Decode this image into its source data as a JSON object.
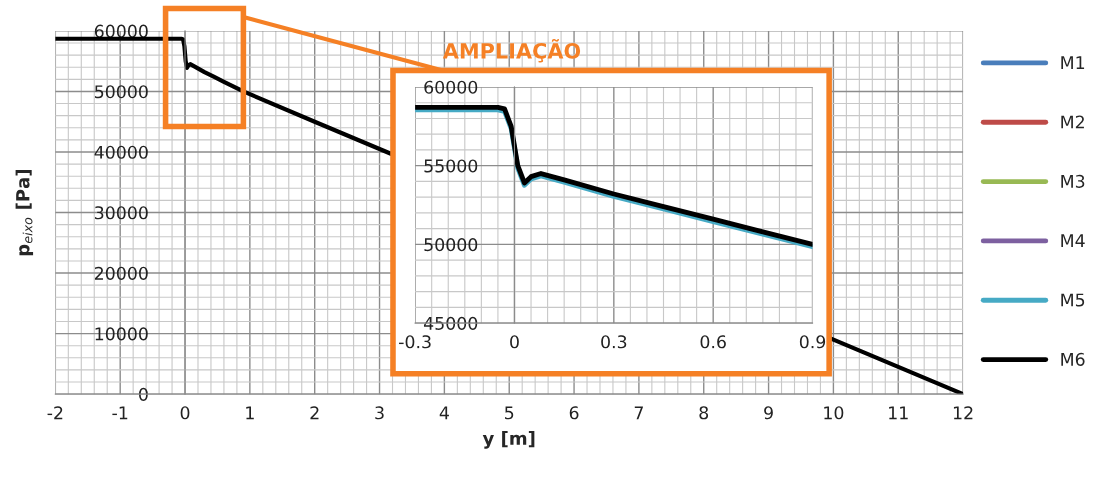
{
  "chart_data": [
    {
      "type": "line",
      "xlabel": "y [m]",
      "ylabel": "p$_{eixo}$ [Pa]",
      "x": [
        -2,
        -0.3,
        -0.05,
        -0.03,
        -0.01,
        0.01,
        0.03,
        0.05,
        0.08,
        0.15,
        0.3,
        0.45,
        0.6,
        0.75,
        0.9,
        2,
        3,
        10,
        11,
        12
      ],
      "series": [
        {
          "name": "M1",
          "color": "#4a7ebb",
          "values": [
            null,
            null,
            null,
            null,
            null,
            null,
            null,
            null,
            null,
            null,
            null,
            null,
            null,
            null,
            null,
            null,
            null,
            null,
            null,
            null
          ]
        },
        {
          "name": "M2",
          "color": "#be4b48",
          "values": [
            null,
            null,
            null,
            null,
            null,
            null,
            null,
            null,
            null,
            null,
            null,
            null,
            null,
            null,
            null,
            null,
            null,
            null,
            null,
            null
          ]
        },
        {
          "name": "M3",
          "color": "#98b954",
          "values": [
            null,
            null,
            null,
            null,
            null,
            null,
            null,
            null,
            null,
            null,
            null,
            null,
            null,
            null,
            null,
            null,
            null,
            null,
            null,
            null
          ]
        },
        {
          "name": "M4",
          "color": "#7d60a0",
          "values": [
            null,
            null,
            null,
            null,
            null,
            null,
            null,
            null,
            null,
            null,
            null,
            null,
            null,
            null,
            null,
            null,
            null,
            null,
            null,
            null
          ]
        },
        {
          "name": "M5",
          "color": "#46aac5",
          "values": [
            null,
            null,
            null,
            null,
            null,
            null,
            null,
            null,
            null,
            null,
            null,
            null,
            null,
            null,
            null,
            null,
            null,
            null,
            null,
            null
          ]
        },
        {
          "name": "M6",
          "color": "#000000",
          "values": [
            58700,
            58700,
            58700,
            58600,
            57500,
            55000,
            53900,
            54300,
            54500,
            54100,
            53200,
            52400,
            51600,
            50800,
            50000,
            45000,
            40500,
            9000,
            4500,
            0
          ]
        }
      ],
      "xlim": [
        -2,
        12
      ],
      "ylim": [
        0,
        60000
      ],
      "xticks": [
        -2,
        -1,
        0,
        1,
        2,
        3,
        4,
        5,
        6,
        7,
        8,
        9,
        10,
        11,
        12
      ],
      "yticks": [
        0,
        10000,
        20000,
        30000,
        40000,
        50000,
        60000
      ],
      "grid": true,
      "legend": "right"
    },
    {
      "type": "line",
      "annotations": [
        "AMPLIAÇÃO"
      ],
      "x": [
        -0.3,
        -0.05,
        -0.03,
        -0.01,
        0.01,
        0.03,
        0.05,
        0.08,
        0.15,
        0.3,
        0.45,
        0.6,
        0.75,
        0.9
      ],
      "series": [
        {
          "color": "#46aac5",
          "values": [
            58550,
            58550,
            58450,
            57350,
            54850,
            53750,
            54150,
            54350,
            53950,
            53050,
            52250,
            51450,
            50650,
            49850
          ]
        },
        {
          "color": "#000000",
          "values": [
            58700,
            58700,
            58600,
            57500,
            55000,
            53900,
            54300,
            54500,
            54100,
            53200,
            52400,
            51600,
            50800,
            50000
          ]
        }
      ],
      "xlim": [
        -0.3,
        0.9
      ],
      "ylim": [
        45000,
        60000
      ],
      "xticks": [
        -0.3,
        0,
        0.3,
        0.6,
        0.9
      ],
      "yticks": [
        45000,
        50000,
        55000,
        60000
      ],
      "grid": true
    }
  ]
}
